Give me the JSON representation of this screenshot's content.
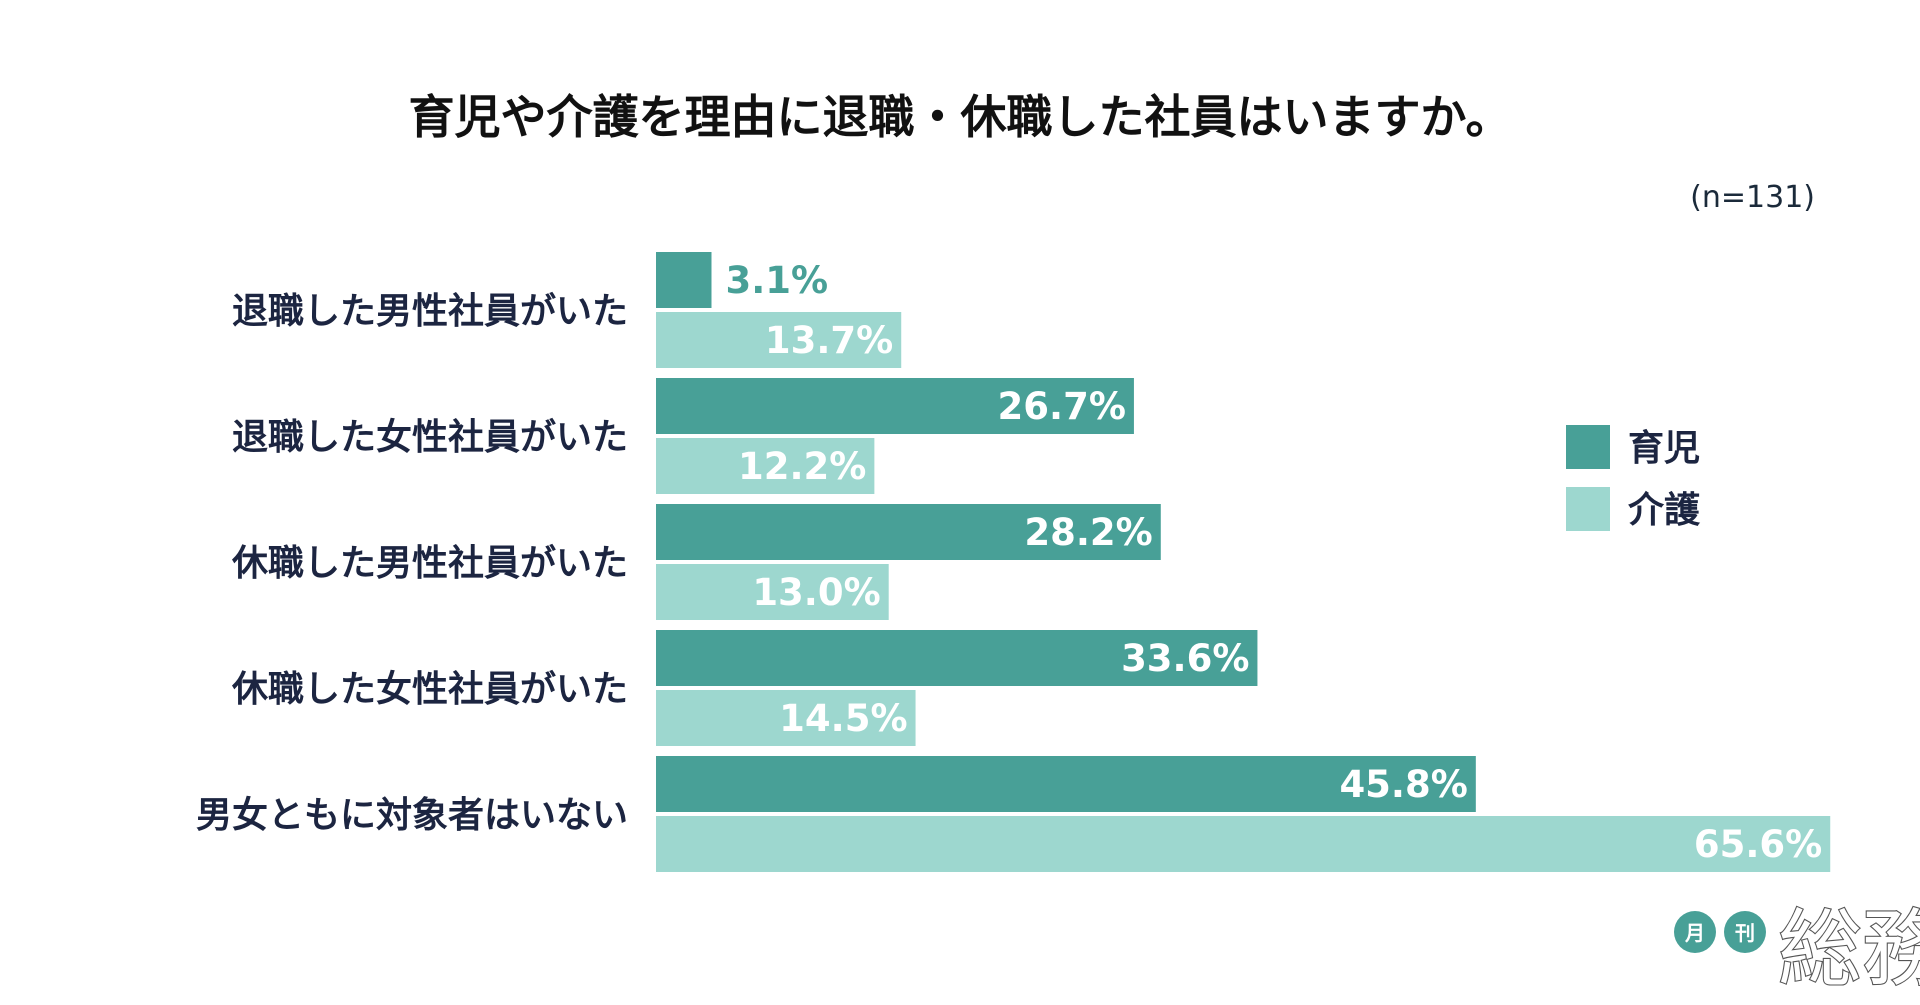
{
  "chart_data": {
    "type": "bar",
    "orientation": "horizontal",
    "title": "育児や介護を理由に退職・休職した社員はいますか。",
    "sample_note": "(n=131)",
    "categories": [
      "退職した男性社員がいた",
      "退職した女性社員がいた",
      "休職した男性社員がいた",
      "休職した女性社員がいた",
      "男女ともに対象者はいない"
    ],
    "series": [
      {
        "name": "育児",
        "color": "#48a097",
        "values": [
          3.1,
          26.7,
          28.2,
          33.6,
          45.8
        ],
        "labels": [
          "3.1%",
          "26.7%",
          "28.2%",
          "33.6%",
          "45.8%"
        ]
      },
      {
        "name": "介護",
        "color": "#9dd7cf",
        "values": [
          13.7,
          12.2,
          13.0,
          14.5,
          65.6
        ],
        "labels": [
          "13.7%",
          "12.2%",
          "13.0%",
          "14.5%",
          "65.6%"
        ]
      }
    ],
    "xlim": [
      0,
      100
    ],
    "grid": false,
    "legend_position": "right"
  },
  "logo": {
    "small_1": "月",
    "small_2": "刊",
    "main": "総務",
    "circle_color": "#48a097"
  }
}
